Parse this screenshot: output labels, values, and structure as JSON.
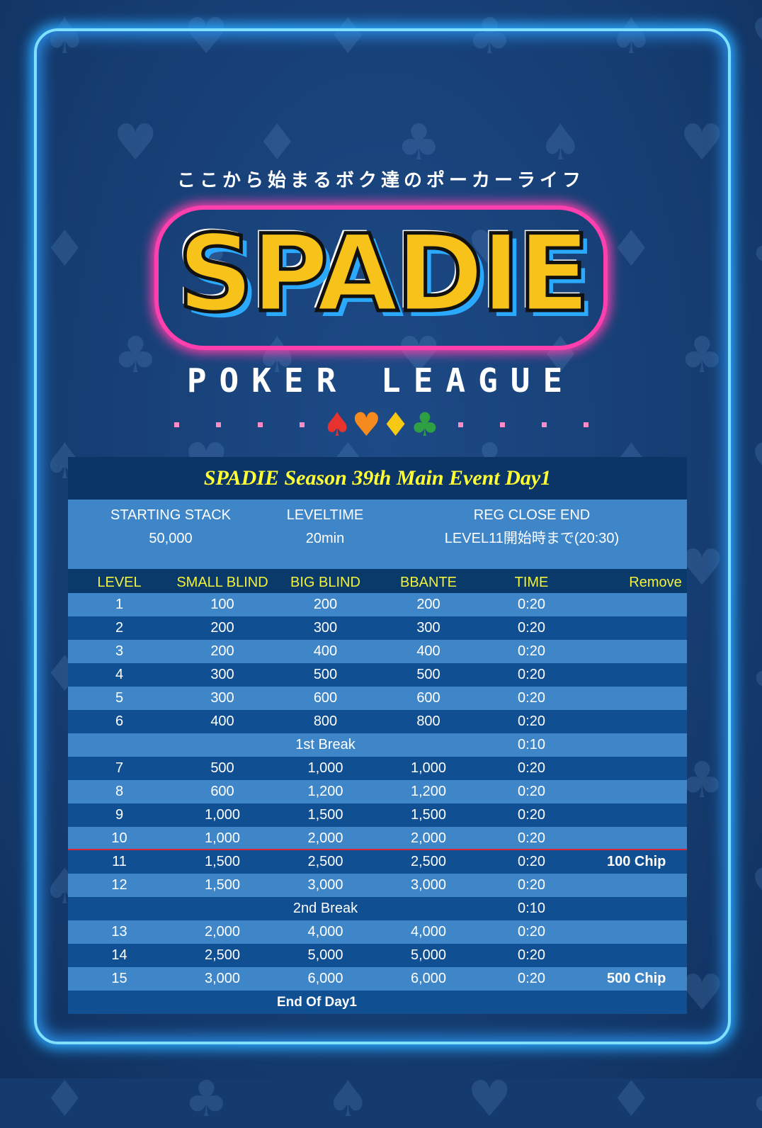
{
  "header": {
    "tagline": "ここから始まるボク達のポーカーライフ",
    "logo": "SPADIE",
    "subtitle": "POKER LEAGUE"
  },
  "colors": {
    "accent_yellow": "#ffff33",
    "neon_blue": "#7fe0ff",
    "neon_pink": "#ff3fae",
    "row_light": "#3f86c8",
    "row_dark": "#0f4f92",
    "reg_close_line": "#d9263a"
  },
  "event": {
    "title": "SPADIE Season 39th Main Event Day1",
    "info": [
      {
        "label": "STARTING STACK",
        "value": "50,000"
      },
      {
        "label": "LEVELTIME",
        "value": "20min"
      },
      {
        "label": "REG CLOSE END",
        "value": "LEVEL11開始時まで(20:30)"
      }
    ]
  },
  "columns": [
    "LEVEL",
    "SMALL BLIND",
    "BIG BLIND",
    "BBANTE",
    "TIME",
    "Remove"
  ],
  "rows": [
    {
      "level": "1",
      "sb": "100",
      "bb": "200",
      "ante": "200",
      "time": "0:20",
      "remove": ""
    },
    {
      "level": "2",
      "sb": "200",
      "bb": "300",
      "ante": "300",
      "time": "0:20",
      "remove": ""
    },
    {
      "level": "3",
      "sb": "200",
      "bb": "400",
      "ante": "400",
      "time": "0:20",
      "remove": ""
    },
    {
      "level": "4",
      "sb": "300",
      "bb": "500",
      "ante": "500",
      "time": "0:20",
      "remove": ""
    },
    {
      "level": "5",
      "sb": "300",
      "bb": "600",
      "ante": "600",
      "time": "0:20",
      "remove": ""
    },
    {
      "level": "6",
      "sb": "400",
      "bb": "800",
      "ante": "800",
      "time": "0:20",
      "remove": ""
    },
    {
      "break": "1st Break",
      "time": "0:10"
    },
    {
      "level": "7",
      "sb": "500",
      "bb": "1,000",
      "ante": "1,000",
      "time": "0:20",
      "remove": ""
    },
    {
      "level": "8",
      "sb": "600",
      "bb": "1,200",
      "ante": "1,200",
      "time": "0:20",
      "remove": ""
    },
    {
      "level": "9",
      "sb": "1,000",
      "bb": "1,500",
      "ante": "1,500",
      "time": "0:20",
      "remove": ""
    },
    {
      "level": "10",
      "sb": "1,000",
      "bb": "2,000",
      "ante": "2,000",
      "time": "0:20",
      "remove": ""
    },
    {
      "level": "11",
      "sb": "1,500",
      "bb": "2,500",
      "ante": "2,500",
      "time": "0:20",
      "remove": "100 Chip"
    },
    {
      "level": "12",
      "sb": "1,500",
      "bb": "3,000",
      "ante": "3,000",
      "time": "0:20",
      "remove": ""
    },
    {
      "break": "2nd Break",
      "time": "0:10"
    },
    {
      "level": "13",
      "sb": "2,000",
      "bb": "4,000",
      "ante": "4,000",
      "time": "0:20",
      "remove": ""
    },
    {
      "level": "14",
      "sb": "2,500",
      "bb": "5,000",
      "ante": "5,000",
      "time": "0:20",
      "remove": ""
    },
    {
      "level": "15",
      "sb": "3,000",
      "bb": "6,000",
      "ante": "6,000",
      "time": "0:20",
      "remove": "500 Chip"
    }
  ],
  "footer": "End Of Day1"
}
